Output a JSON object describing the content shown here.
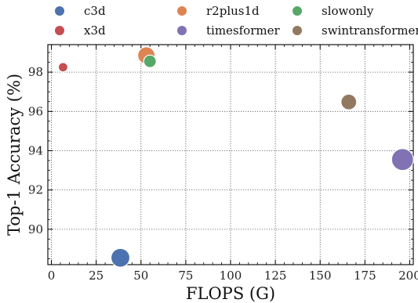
{
  "chart_data": {
    "type": "scatter",
    "xlabel": "FLOPS (G)",
    "ylabel": "Top-1 Accuracy (%)",
    "xlim": [
      -2,
      202
    ],
    "ylim": [
      88.2,
      99.4
    ],
    "x_ticks": [
      0,
      25,
      50,
      75,
      100,
      125,
      150,
      175,
      200
    ],
    "y_ticks": [
      90,
      92,
      94,
      96,
      98
    ],
    "grid": true,
    "grid_style": "dotted",
    "legend_position": "top",
    "legend_columns": 3,
    "series": [
      {
        "name": "c3d",
        "color": "#4c72b0",
        "points": [
          {
            "x": 38.5,
            "y": 88.55,
            "size": 12
          }
        ]
      },
      {
        "name": "r2plus1d",
        "color": "#dd8452",
        "points": [
          {
            "x": 53,
            "y": 98.85,
            "size": 11
          }
        ]
      },
      {
        "name": "slowonly",
        "color": "#55a868",
        "points": [
          {
            "x": 55,
            "y": 98.55,
            "size": 8
          }
        ]
      },
      {
        "name": "x3d",
        "color": "#c44e52",
        "points": [
          {
            "x": 6.5,
            "y": 98.25,
            "size": 6
          }
        ]
      },
      {
        "name": "timesformer",
        "color": "#8172b3",
        "points": [
          {
            "x": 196,
            "y": 93.55,
            "size": 14
          }
        ]
      },
      {
        "name": "swintransformer",
        "color": "#937860",
        "points": [
          {
            "x": 166,
            "y": 96.48,
            "size": 10
          }
        ]
      }
    ]
  }
}
